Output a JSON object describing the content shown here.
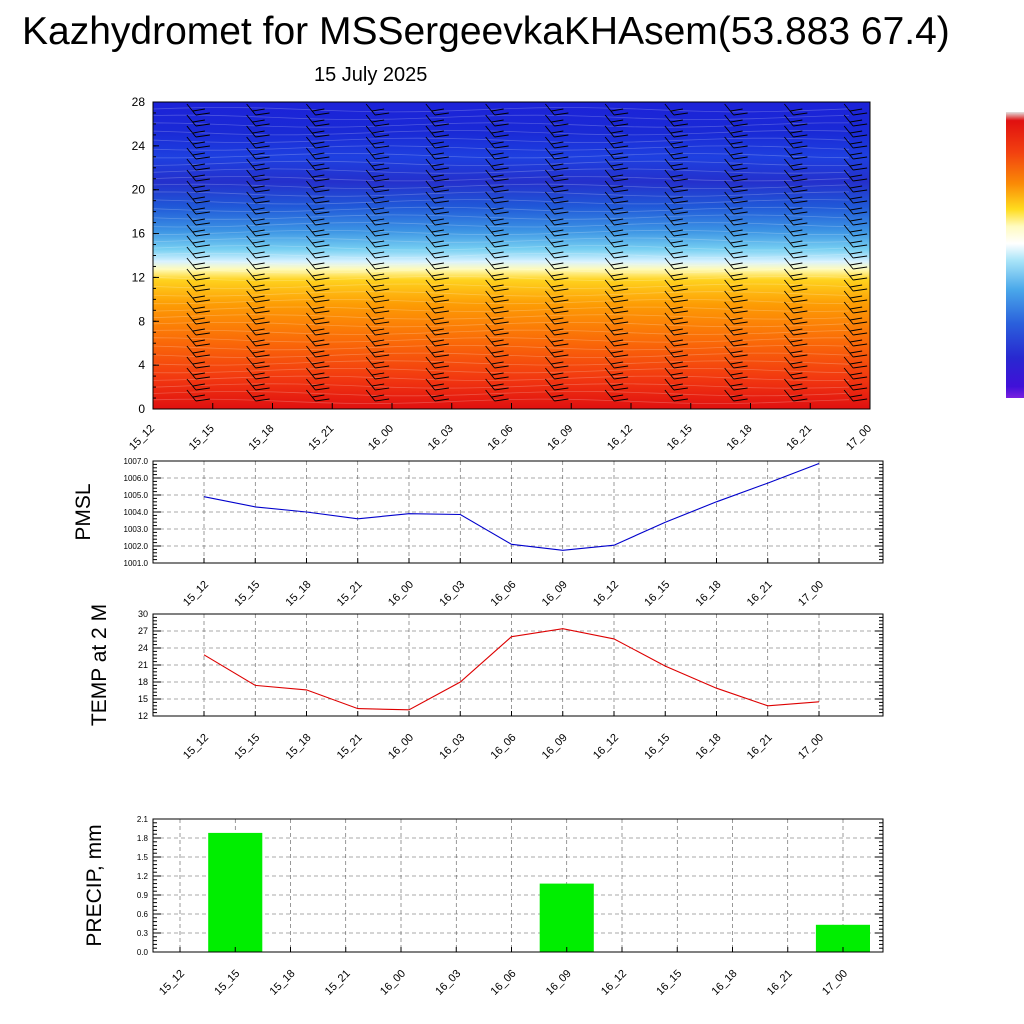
{
  "header": {
    "title": "Kazhydromet for MSSergeevkaKHAsem(53.883 67.4)",
    "date": "15 July 2025"
  },
  "colors": {
    "pmsl_line": "#0000cc",
    "temp_line": "#dd0000",
    "precip_bar": "#00ee00",
    "wind_barb": "#000000"
  },
  "chart_data": [
    {
      "id": "cross_section",
      "type": "heatmap",
      "title": "",
      "x_ticks": [
        "15_12",
        "15_15",
        "15_18",
        "15_21",
        "16_00",
        "16_03",
        "16_06",
        "16_09",
        "16_12",
        "16_15",
        "16_18",
        "16_21",
        "17_00"
      ],
      "y_ticks": [
        "0",
        "4",
        "8",
        "12",
        "16",
        "20",
        "24",
        "28"
      ],
      "ylim": [
        0,
        28
      ],
      "colorbar": true,
      "wind_barbs": true,
      "grid": false
    },
    {
      "id": "pmsl",
      "type": "line",
      "ylabel": "PMSL",
      "categories": [
        "15_12",
        "15_15",
        "15_18",
        "15_21",
        "16_00",
        "16_03",
        "16_06",
        "16_09",
        "16_12",
        "16_15",
        "16_18",
        "16_21",
        "17_00"
      ],
      "values": [
        1004.9,
        1004.3,
        1004.0,
        1003.6,
        1003.9,
        1003.85,
        1002.1,
        1001.75,
        1002.05,
        1003.4,
        1004.6,
        1005.7,
        1006.85
      ],
      "y_ticks": [
        "1001.0",
        "1002.0",
        "1003.0",
        "1004.0",
        "1005.0",
        "1006.0",
        "1007.0"
      ],
      "ylim": [
        1001,
        1007
      ],
      "grid": true
    },
    {
      "id": "temp",
      "type": "line",
      "ylabel": "TEMP at 2 M",
      "categories": [
        "15_12",
        "15_15",
        "15_18",
        "15_21",
        "16_00",
        "16_03",
        "16_06",
        "16_09",
        "16_12",
        "16_15",
        "16_18",
        "16_21",
        "17_00"
      ],
      "values": [
        22.8,
        17.4,
        16.6,
        13.3,
        13.1,
        18.0,
        26.0,
        27.4,
        25.6,
        20.8,
        16.9,
        13.8,
        14.5
      ],
      "y_ticks": [
        "12",
        "15",
        "18",
        "21",
        "24",
        "27",
        "30"
      ],
      "ylim": [
        12,
        30
      ],
      "grid": true
    },
    {
      "id": "precip",
      "type": "bar",
      "ylabel": "PRECIP, mm",
      "categories": [
        "15_12",
        "15_15",
        "15_18",
        "15_21",
        "16_00",
        "16_03",
        "16_06",
        "16_09",
        "16_12",
        "16_15",
        "16_18",
        "16_21",
        "17_00"
      ],
      "values": [
        0,
        1.88,
        0,
        0,
        0,
        0,
        0,
        1.08,
        0,
        0,
        0,
        0,
        0.43
      ],
      "y_ticks": [
        "0.0",
        "0.3",
        "0.6",
        "0.9",
        "1.2",
        "1.5",
        "1.8",
        "2.1"
      ],
      "ylim": [
        0,
        2.1
      ],
      "grid": true
    }
  ]
}
